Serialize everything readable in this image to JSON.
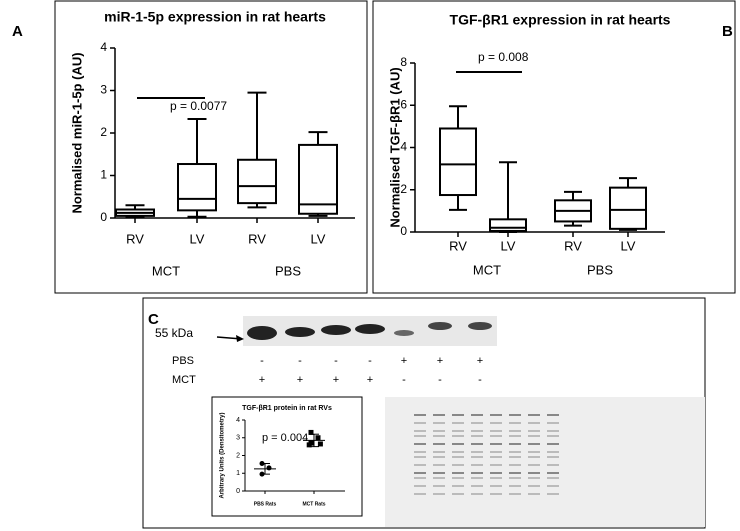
{
  "panel_labels": [
    "A",
    "B",
    "C"
  ],
  "chart_data": [
    {
      "type": "box",
      "title": "miR-1-5p expression in rat hearts",
      "y_label": "Normalised miR-1-5p (AU)",
      "categories": [
        "RV",
        "LV",
        "RV",
        "LV"
      ],
      "groups": [
        "MCT",
        "PBS"
      ],
      "annotation": "p = 0.0077",
      "min": [
        0.02,
        0.03,
        0.25,
        0.05
      ],
      "q1": [
        0.05,
        0.18,
        0.35,
        0.1
      ],
      "median": [
        0.12,
        0.45,
        0.75,
        0.32
      ],
      "q3": [
        0.2,
        1.27,
        1.37,
        1.72
      ],
      "max": [
        0.3,
        2.33,
        2.95,
        2.02
      ],
      "ylim": [
        0,
        4
      ],
      "yticks": [
        0,
        1,
        2,
        3,
        4
      ]
    },
    {
      "type": "box",
      "title": "TGF-βR1 expression in rat hearts",
      "y_label": "Normalised TGF-βR1 (AU)",
      "categories": [
        "RV",
        "LV",
        "RV",
        "LV"
      ],
      "groups": [
        "MCT",
        "PBS"
      ],
      "annotation": "p = 0.008",
      "min": [
        1.05,
        0,
        0.3,
        0.1
      ],
      "q1": [
        1.75,
        0.05,
        0.5,
        0.15
      ],
      "median": [
        3.2,
        0.2,
        1.0,
        1.05
      ],
      "q3": [
        4.9,
        0.6,
        1.5,
        2.1
      ],
      "max": [
        5.95,
        3.3,
        1.9,
        2.55
      ],
      "ylim": [
        0,
        8
      ],
      "yticks": [
        0,
        2,
        4,
        6,
        8
      ]
    },
    {
      "type": "dot",
      "title": "TGF-βR1 protein in rat RVs",
      "y_label": "Arbitrary Units (Densitometry)",
      "categories": [
        "PBS Rats",
        "MCT Rats"
      ],
      "annotation": "p = 0.004",
      "points": [
        [
          1.55,
          1.3,
          0.95
        ],
        [
          3.3,
          3.0,
          2.7,
          2.65,
          2.6
        ]
      ],
      "means": [
        1.25,
        2.85
      ],
      "sd": [
        0.3,
        0.35
      ],
      "ylim": [
        0,
        4
      ],
      "yticks": [
        0,
        1,
        2,
        3,
        4
      ]
    }
  ],
  "blot": {
    "size_label": "55 kDa",
    "rows": [
      {
        "label": "PBS",
        "signs": [
          "-",
          "-",
          "-",
          "-",
          "+",
          "+",
          "+"
        ]
      },
      {
        "label": "MCT",
        "signs": [
          "+",
          "+",
          "+",
          "+",
          "-",
          "-",
          "-"
        ]
      }
    ]
  }
}
